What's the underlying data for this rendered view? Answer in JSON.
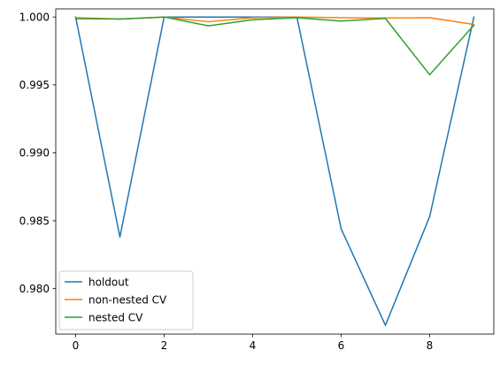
{
  "chart_data": {
    "type": "line",
    "title": "",
    "xlabel": "",
    "ylabel": "",
    "x": [
      0,
      1,
      2,
      3,
      4,
      5,
      6,
      7,
      8,
      9
    ],
    "xlim": [
      -0.45,
      9.45
    ],
    "ylim": [
      0.97665,
      1.0006
    ],
    "xticks": [
      0,
      2,
      4,
      6,
      8
    ],
    "yticks": [
      0.98,
      0.985,
      0.99,
      0.995,
      1.0
    ],
    "ytick_labels": [
      "0.980",
      "0.985",
      "0.990",
      "0.995",
      "1.000"
    ],
    "grid": false,
    "legend_position": "lower-left",
    "series": [
      {
        "name": "holdout",
        "color": "#1f77b4",
        "values": [
          1.0,
          0.9838,
          1.0,
          1.0,
          1.0,
          1.0,
          0.9844,
          0.9773,
          0.9853,
          1.0
        ]
      },
      {
        "name": "non-nested CV",
        "color": "#ff7f0e",
        "values": [
          0.99995,
          0.99985,
          1.0,
          0.99965,
          0.99995,
          1.0,
          0.99995,
          0.99992,
          0.99995,
          0.99945
        ]
      },
      {
        "name": "nested CV",
        "color": "#2ca02c",
        "values": [
          0.99988,
          0.99985,
          1.0,
          0.99935,
          0.9998,
          0.99995,
          0.9997,
          0.9999,
          0.99575,
          0.9994
        ]
      }
    ]
  }
}
